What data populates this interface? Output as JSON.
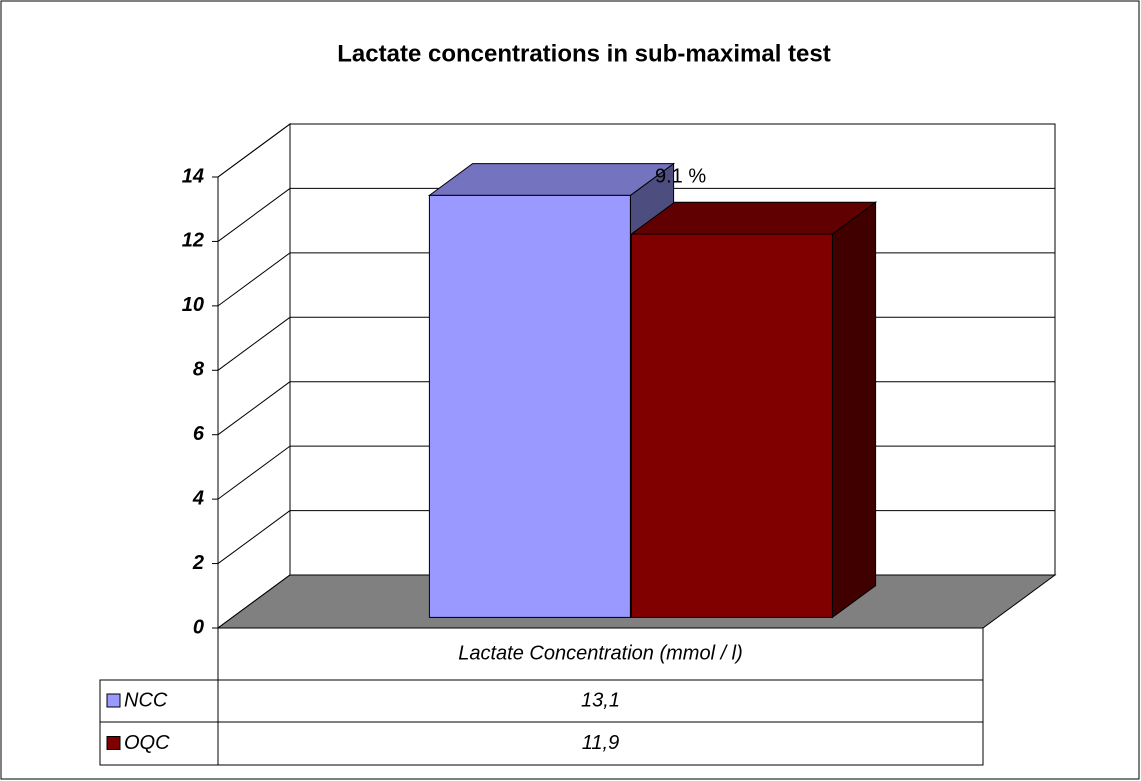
{
  "chart_data": {
    "type": "bar3d",
    "title": "Lactate concentrations in sub-maximal test",
    "categories": [
      "Lactate Concentration (mmol / l)"
    ],
    "series": [
      {
        "name": "NCC",
        "color": "#9999ff",
        "values": [
          13.1
        ],
        "value_labels": [
          "13,1"
        ]
      },
      {
        "name": "OQC",
        "color": "#800000",
        "values": [
          11.9
        ],
        "value_labels": [
          "11,9"
        ]
      }
    ],
    "annotation": "9.1 %",
    "ylim": [
      0,
      14
    ],
    "yticks": [
      0,
      2,
      4,
      6,
      8,
      10,
      12,
      14
    ],
    "grid": true,
    "data_table": true
  }
}
